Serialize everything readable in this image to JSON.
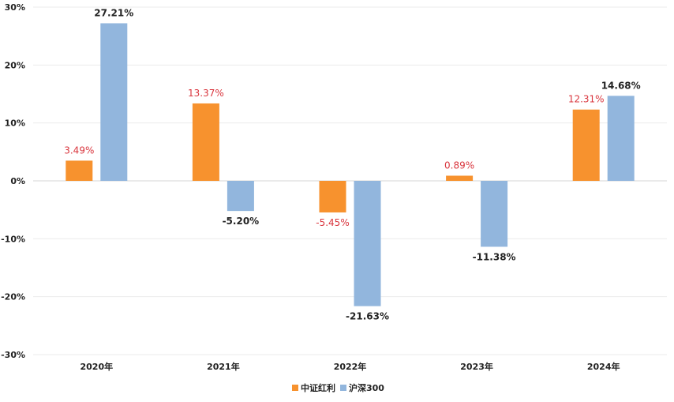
{
  "chart_data": {
    "type": "bar",
    "categories": [
      "2020年",
      "2021年",
      "2022年",
      "2023年",
      "2024年"
    ],
    "series": [
      {
        "name": "中证红利",
        "values": [
          3.49,
          13.37,
          -5.45,
          0.89,
          12.31
        ],
        "labels": [
          "3.49%",
          "13.37%",
          "-5.45%",
          "0.89%",
          "12.31%"
        ],
        "color": "#f7922e",
        "label_color": "#d9363e"
      },
      {
        "name": "沪深300",
        "values": [
          27.21,
          -5.2,
          -21.63,
          -11.38,
          14.68
        ],
        "labels": [
          "27.21%",
          "-5.20%",
          "-21.63%",
          "-11.38%",
          "14.68%"
        ],
        "color": "#92b6dd",
        "label_color": "#222222"
      }
    ],
    "yticks": [
      30,
      20,
      10,
      0,
      -10,
      -20,
      -30
    ],
    "ytick_labels": [
      "30%",
      "20%",
      "10%",
      "0%",
      "-10%",
      "-20%",
      "-30%"
    ],
    "ylim": [
      -30,
      30
    ],
    "grid": true,
    "legend": "bottom-center",
    "title": "",
    "xlabel": "",
    "ylabel": ""
  }
}
